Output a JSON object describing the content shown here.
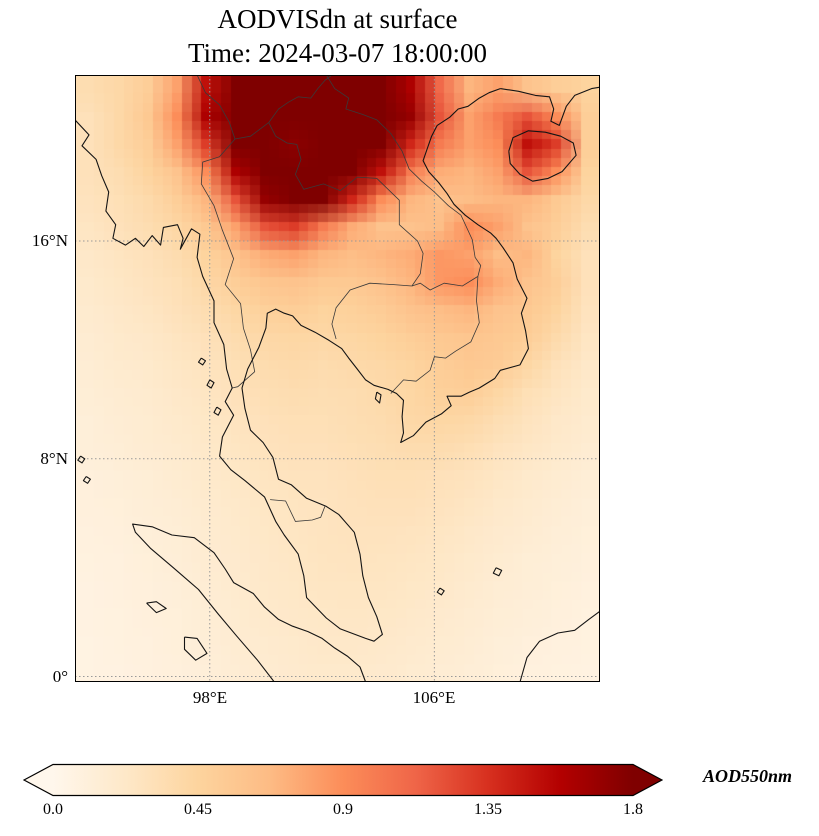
{
  "chart_data": {
    "type": "heatmap",
    "title": "AODVISdn at surface",
    "subtitle": "Time: 2024-03-07 18:00:00",
    "variable": "AOD550nm",
    "projection": "PlateCarree",
    "lon_range": [
      93.2,
      111.9
    ],
    "lat_range": [
      -0.2,
      22.1
    ],
    "grid_on": true,
    "xticks": [
      {
        "lon": 98,
        "label": "98°E"
      },
      {
        "lon": 106,
        "label": "106°E"
      }
    ],
    "yticks": [
      {
        "lat": 16,
        "label": "16°N"
      },
      {
        "lat": 8,
        "label": "8°N"
      },
      {
        "lat": 0,
        "label": "0°"
      }
    ],
    "colorbar": {
      "orientation": "horizontal",
      "label": "AOD550nm",
      "min": 0,
      "max": 1.8,
      "extend": "both",
      "tick_values": [
        0,
        0.45,
        0.9,
        1.35,
        1.8
      ],
      "ticks": [
        "0.0",
        "0.45",
        "0.9",
        "1.35",
        "1.8"
      ]
    },
    "colormap": {
      "name": "OrRd",
      "stops": [
        [
          0.0,
          "#fff7ec"
        ],
        [
          0.125,
          "#fee8c8"
        ],
        [
          0.25,
          "#fdd49e"
        ],
        [
          0.375,
          "#fdbb84"
        ],
        [
          0.5,
          "#fc8d59"
        ],
        [
          0.625,
          "#ef6548"
        ],
        [
          0.75,
          "#d7301f"
        ],
        [
          0.875,
          "#b30000"
        ],
        [
          1.0,
          "#7f0000"
        ]
      ]
    },
    "grid": {
      "rows": 22,
      "cols": 18,
      "note": "AOD550nm values sampled on ~1deg grid, row 0 = north (lat 22.1) to row 21 = south (lat -0.2), col 0 = west (lon 93.2) to col 17 = east (lon 111.9)",
      "values": [
        [
          0.35,
          0.4,
          0.5,
          0.8,
          1.5,
          1.85,
          1.9,
          1.9,
          1.85,
          1.9,
          1.8,
          1.6,
          1.1,
          0.7,
          0.8,
          0.6,
          0.5,
          0.45
        ],
        [
          0.3,
          0.4,
          0.55,
          0.9,
          1.6,
          1.9,
          1.85,
          1.8,
          1.9,
          1.9,
          1.85,
          1.7,
          1.2,
          0.8,
          1.0,
          1.2,
          0.9,
          0.5
        ],
        [
          0.3,
          0.4,
          0.5,
          0.8,
          1.3,
          1.8,
          1.9,
          1.75,
          1.85,
          1.9,
          1.8,
          1.4,
          1.0,
          0.8,
          0.9,
          1.5,
          1.3,
          0.5
        ],
        [
          0.3,
          0.35,
          0.45,
          0.6,
          0.9,
          1.6,
          1.85,
          1.9,
          1.8,
          1.8,
          1.5,
          1.0,
          0.75,
          0.7,
          0.8,
          1.2,
          0.9,
          0.45
        ],
        [
          0.28,
          0.32,
          0.38,
          0.5,
          0.7,
          1.2,
          1.7,
          1.85,
          1.8,
          1.4,
          0.9,
          0.7,
          0.6,
          0.65,
          0.7,
          0.7,
          0.55,
          0.4
        ],
        [
          0.25,
          0.3,
          0.35,
          0.42,
          0.55,
          0.8,
          1.2,
          1.3,
          1.0,
          0.75,
          0.6,
          0.6,
          0.65,
          0.9,
          0.8,
          0.6,
          0.5,
          0.35
        ],
        [
          0.22,
          0.26,
          0.3,
          0.36,
          0.45,
          0.6,
          0.75,
          0.8,
          0.7,
          0.65,
          0.7,
          0.75,
          0.85,
          0.8,
          0.65,
          0.7,
          0.45,
          0.3
        ],
        [
          0.2,
          0.24,
          0.28,
          0.32,
          0.4,
          0.5,
          0.58,
          0.6,
          0.55,
          0.55,
          0.6,
          0.7,
          0.85,
          0.9,
          0.75,
          0.6,
          0.5,
          0.3
        ],
        [
          0.18,
          0.22,
          0.25,
          0.3,
          0.35,
          0.42,
          0.48,
          0.5,
          0.45,
          0.48,
          0.52,
          0.6,
          0.65,
          0.7,
          0.6,
          0.55,
          0.45,
          0.28
        ],
        [
          0.16,
          0.2,
          0.22,
          0.26,
          0.3,
          0.36,
          0.4,
          0.42,
          0.4,
          0.42,
          0.45,
          0.5,
          0.55,
          0.58,
          0.55,
          0.5,
          0.38,
          0.25
        ],
        [
          0.15,
          0.18,
          0.2,
          0.24,
          0.27,
          0.32,
          0.36,
          0.38,
          0.36,
          0.38,
          0.4,
          0.44,
          0.5,
          0.55,
          0.52,
          0.42,
          0.3,
          0.22
        ],
        [
          0.14,
          0.16,
          0.18,
          0.22,
          0.25,
          0.3,
          0.33,
          0.35,
          0.34,
          0.35,
          0.38,
          0.42,
          0.48,
          0.5,
          0.42,
          0.32,
          0.26,
          0.2
        ],
        [
          0.12,
          0.15,
          0.17,
          0.2,
          0.23,
          0.27,
          0.3,
          0.32,
          0.32,
          0.34,
          0.36,
          0.4,
          0.42,
          0.4,
          0.34,
          0.28,
          0.22,
          0.18
        ],
        [
          0.12,
          0.14,
          0.16,
          0.18,
          0.21,
          0.25,
          0.28,
          0.3,
          0.3,
          0.32,
          0.34,
          0.36,
          0.36,
          0.33,
          0.28,
          0.24,
          0.2,
          0.16
        ],
        [
          0.1,
          0.12,
          0.14,
          0.17,
          0.2,
          0.23,
          0.26,
          0.28,
          0.28,
          0.3,
          0.32,
          0.32,
          0.3,
          0.28,
          0.24,
          0.2,
          0.17,
          0.14
        ],
        [
          0.1,
          0.11,
          0.13,
          0.15,
          0.18,
          0.21,
          0.24,
          0.26,
          0.27,
          0.29,
          0.3,
          0.3,
          0.28,
          0.25,
          0.21,
          0.18,
          0.15,
          0.12
        ],
        [
          0.09,
          0.1,
          0.12,
          0.14,
          0.17,
          0.2,
          0.23,
          0.25,
          0.27,
          0.28,
          0.28,
          0.27,
          0.25,
          0.22,
          0.19,
          0.16,
          0.13,
          0.11
        ],
        [
          0.08,
          0.09,
          0.11,
          0.13,
          0.16,
          0.19,
          0.22,
          0.24,
          0.26,
          0.27,
          0.26,
          0.25,
          0.23,
          0.2,
          0.17,
          0.14,
          0.12,
          0.1
        ],
        [
          0.07,
          0.09,
          0.1,
          0.12,
          0.15,
          0.18,
          0.21,
          0.23,
          0.25,
          0.25,
          0.25,
          0.23,
          0.21,
          0.18,
          0.15,
          0.13,
          0.11,
          0.09
        ],
        [
          0.07,
          0.08,
          0.1,
          0.11,
          0.14,
          0.17,
          0.2,
          0.22,
          0.23,
          0.24,
          0.23,
          0.21,
          0.19,
          0.16,
          0.14,
          0.12,
          0.1,
          0.08
        ],
        [
          0.06,
          0.08,
          0.09,
          0.11,
          0.13,
          0.16,
          0.18,
          0.2,
          0.22,
          0.22,
          0.21,
          0.19,
          0.17,
          0.15,
          0.12,
          0.1,
          0.09,
          0.08
        ],
        [
          0.06,
          0.07,
          0.09,
          0.1,
          0.12,
          0.15,
          0.17,
          0.19,
          0.2,
          0.2,
          0.19,
          0.17,
          0.15,
          0.13,
          0.11,
          0.09,
          0.08,
          0.07
        ]
      ]
    }
  }
}
